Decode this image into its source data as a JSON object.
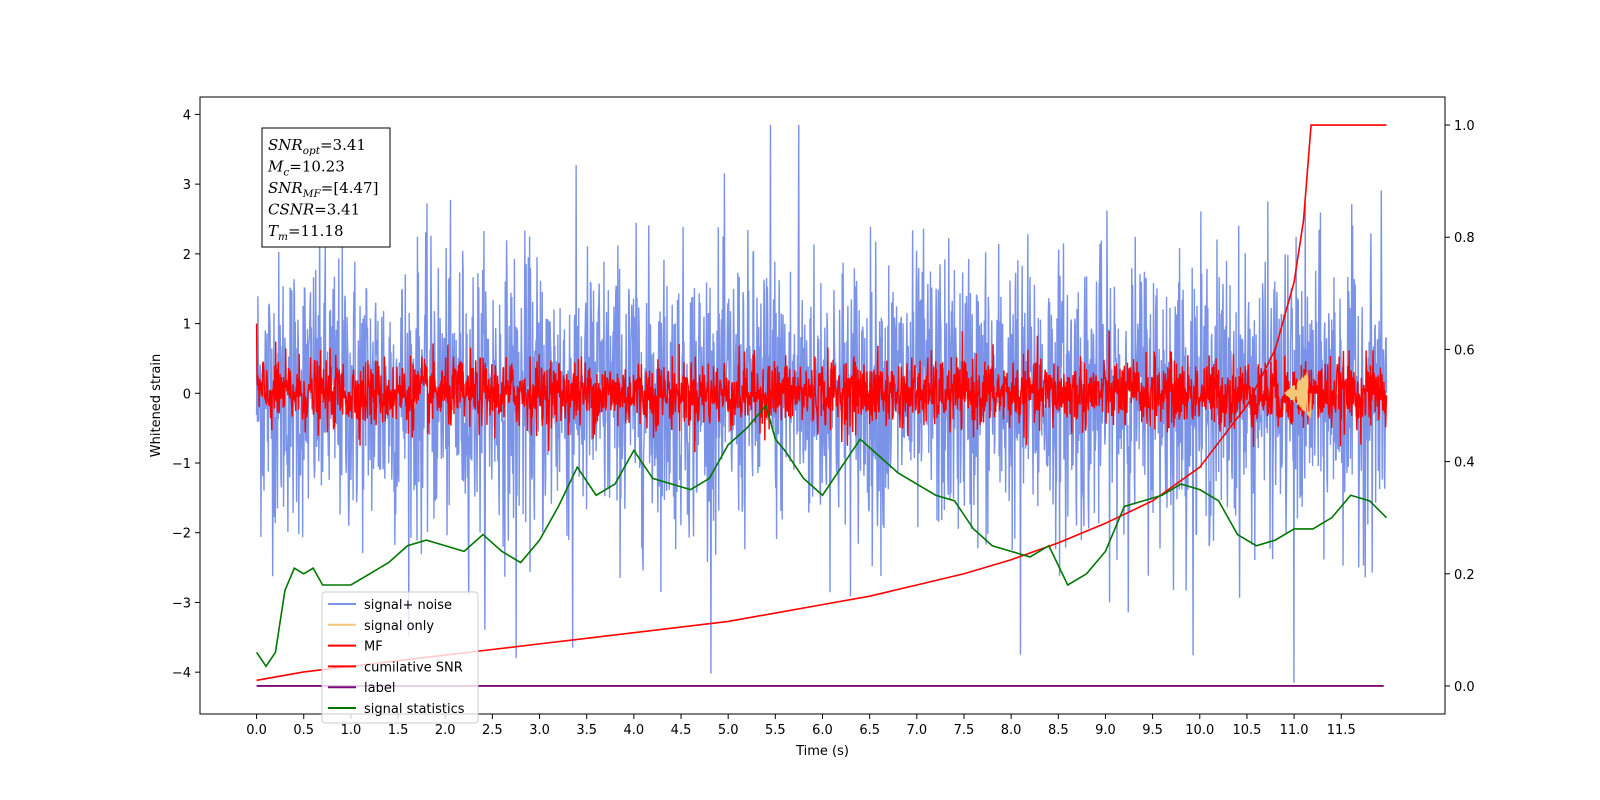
{
  "chart_data": {
    "type": "line",
    "title": "",
    "xlabel": "Time (s)",
    "ylabel": "Whitened strain",
    "xlim": [
      -0.6,
      12.6
    ],
    "ylim": [
      -4.6,
      4.25
    ],
    "y2lim": [
      -0.05,
      1.05
    ],
    "grid": false,
    "x_ticks": [
      0.0,
      0.5,
      1.0,
      1.5,
      2.0,
      2.5,
      3.0,
      3.5,
      4.0,
      4.5,
      5.0,
      5.5,
      6.0,
      6.5,
      7.0,
      7.5,
      8.0,
      8.5,
      9.0,
      9.5,
      10.0,
      10.5,
      11.0,
      11.5
    ],
    "x_tick_labels": [
      "0.0",
      "0.5",
      "1.0",
      "1.5",
      "2.0",
      "2.5",
      "3.0",
      "3.5",
      "4.0",
      "4.5",
      "5.0",
      "5.5",
      "6.0",
      "6.5",
      "7.0",
      "7.5",
      "8.0",
      "8.5",
      "9.0",
      "9.5",
      "10.0",
      "10.5",
      "11.0",
      "11.5"
    ],
    "y_ticks": [
      -4,
      -3,
      -2,
      -1,
      0,
      1,
      2,
      3,
      4
    ],
    "y_tick_labels": [
      "−4",
      "−3",
      "−2",
      "−1",
      "0",
      "1",
      "2",
      "3",
      "4"
    ],
    "y2_ticks": [
      0.0,
      0.2,
      0.4,
      0.6,
      0.8,
      1.0
    ],
    "y2_tick_labels": [
      "0.0",
      "0.2",
      "0.4",
      "0.6",
      "0.8",
      "1.0"
    ],
    "legend": {
      "placement": "lower-left",
      "entries": [
        {
          "name": "signal+ noise",
          "color": "#7a93e8"
        },
        {
          "name": "signal only",
          "color": "#f5c878"
        },
        {
          "name": "MF",
          "color": "#ff0000"
        },
        {
          "name": "cumilative SNR",
          "color": "#ff0000"
        },
        {
          "name": "label",
          "color": "#7b0a7b"
        },
        {
          "name": "signal statistics",
          "color": "#007700"
        }
      ]
    },
    "annotation": {
      "lines": [
        {
          "base": "SNR",
          "sub": "opt",
          "value": "=3.41"
        },
        {
          "base": "M",
          "sub": "c",
          "value": "=10.23"
        },
        {
          "base": "SNR",
          "sub": "MF",
          "value": "=[4.47]"
        },
        {
          "base": "CSNR",
          "sub": "",
          "value": "=3.41"
        },
        {
          "base": "T",
          "sub": "m",
          "value": "=11.18"
        }
      ]
    },
    "series": [
      {
        "name": "signal+ noise",
        "axis": "left",
        "color": "#7a93e8",
        "x_range": [
          0.0,
          11.98
        ],
        "noise_std": 1.0,
        "notable_points": [
          {
            "x": 5.45,
            "y": 3.85
          },
          {
            "x": 5.75,
            "y": 3.85
          },
          {
            "x": 11.0,
            "y": -4.15
          },
          {
            "x": 8.1,
            "y": -3.75
          },
          {
            "x": 2.75,
            "y": -3.8
          },
          {
            "x": 3.35,
            "y": -3.65
          }
        ]
      },
      {
        "name": "MF",
        "axis": "left",
        "color": "#ff0000",
        "x_range": [
          0.0,
          11.98
        ],
        "noise_std": 0.25,
        "start_value": 1.0
      },
      {
        "name": "signal only",
        "axis": "left",
        "color": "#f5c878",
        "x_range": [
          10.9,
          11.18
        ]
      },
      {
        "name": "cumilative SNR",
        "axis": "right",
        "color": "#ff0000",
        "x": [
          0.0,
          0.5,
          1.0,
          1.5,
          2.0,
          2.5,
          3.0,
          3.5,
          4.0,
          4.5,
          5.0,
          5.5,
          6.0,
          6.5,
          7.0,
          7.5,
          8.0,
          8.5,
          9.0,
          9.5,
          10.0,
          10.5,
          10.8,
          11.0,
          11.1,
          11.18,
          11.98
        ],
        "values": [
          0.01,
          0.025,
          0.035,
          0.045,
          0.055,
          0.065,
          0.075,
          0.085,
          0.095,
          0.105,
          0.115,
          0.13,
          0.145,
          0.16,
          0.18,
          0.2,
          0.225,
          0.255,
          0.29,
          0.33,
          0.39,
          0.5,
          0.6,
          0.72,
          0.83,
          1.0,
          1.0
        ]
      },
      {
        "name": "label",
        "axis": "right",
        "color": "#7b0a7b",
        "x": [
          0.0,
          11.95
        ],
        "values": [
          0.0,
          0.0
        ]
      },
      {
        "name": "signal statistics",
        "axis": "right",
        "color": "#007700",
        "x": [
          0.0,
          0.1,
          0.2,
          0.3,
          0.4,
          0.5,
          0.6,
          0.7,
          0.8,
          1.0,
          1.2,
          1.4,
          1.6,
          1.8,
          2.0,
          2.2,
          2.4,
          2.6,
          2.8,
          3.0,
          3.2,
          3.4,
          3.6,
          3.8,
          4.0,
          4.2,
          4.4,
          4.6,
          4.8,
          5.0,
          5.2,
          5.4,
          5.5,
          5.6,
          5.8,
          6.0,
          6.2,
          6.4,
          6.6,
          6.8,
          7.0,
          7.2,
          7.4,
          7.6,
          7.8,
          8.0,
          8.2,
          8.4,
          8.6,
          8.8,
          9.0,
          9.2,
          9.4,
          9.6,
          9.8,
          10.0,
          10.2,
          10.4,
          10.6,
          10.8,
          11.0,
          11.2,
          11.4,
          11.6,
          11.8,
          11.98
        ],
        "values": [
          0.06,
          0.035,
          0.06,
          0.17,
          0.21,
          0.2,
          0.21,
          0.18,
          0.18,
          0.18,
          0.2,
          0.22,
          0.25,
          0.26,
          0.25,
          0.24,
          0.27,
          0.24,
          0.22,
          0.26,
          0.32,
          0.39,
          0.34,
          0.36,
          0.42,
          0.37,
          0.36,
          0.35,
          0.37,
          0.43,
          0.46,
          0.5,
          0.44,
          0.42,
          0.37,
          0.34,
          0.39,
          0.44,
          0.41,
          0.38,
          0.36,
          0.34,
          0.33,
          0.28,
          0.25,
          0.24,
          0.23,
          0.25,
          0.18,
          0.2,
          0.24,
          0.32,
          0.33,
          0.34,
          0.36,
          0.35,
          0.33,
          0.27,
          0.25,
          0.26,
          0.28,
          0.28,
          0.3,
          0.34,
          0.33,
          0.3
        ]
      }
    ]
  }
}
